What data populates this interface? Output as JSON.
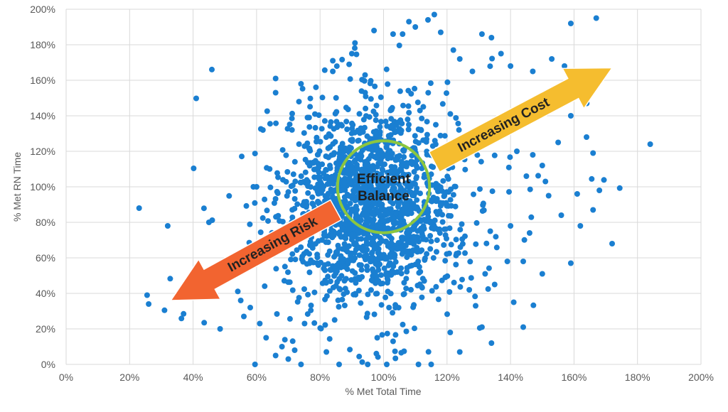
{
  "chart_data": {
    "type": "scatter",
    "xlabel": "% Met Total Time",
    "ylabel": "% Met RN Time",
    "xlim": [
      0,
      200
    ],
    "ylim": [
      0,
      200
    ],
    "x_ticks": [
      "0%",
      "20%",
      "40%",
      "60%",
      "80%",
      "100%",
      "120%",
      "140%",
      "160%",
      "180%",
      "200%"
    ],
    "y_ticks": [
      "0%",
      "20%",
      "40%",
      "60%",
      "80%",
      "100%",
      "120%",
      "140%",
      "160%",
      "180%",
      "200%"
    ],
    "grid": true,
    "point_color": "#1a7fd1",
    "annotations": {
      "center": {
        "lines": [
          "Efficient",
          "Balance"
        ],
        "x": 100,
        "y": 100,
        "radius_x_units": 14.5,
        "ring_color": "#8cc63f"
      },
      "risk_arrow": {
        "label": "Increasing Risk",
        "from": [
          85,
          87
        ],
        "to": [
          33,
          36
        ],
        "color": "#f26430"
      },
      "cost_arrow": {
        "label": "Increasing Cost",
        "from": [
          116,
          114
        ],
        "to": [
          172,
          167
        ],
        "color": "#f5bd2f"
      }
    },
    "outliers": [
      [
        23,
        88
      ],
      [
        25.5,
        39
      ],
      [
        26,
        34
      ],
      [
        31,
        30.5
      ],
      [
        32,
        78
      ],
      [
        37,
        28.5
      ],
      [
        45,
        80
      ],
      [
        43.5,
        23.5
      ],
      [
        48.5,
        20
      ],
      [
        59,
        100
      ],
      [
        60,
        100
      ],
      [
        59.5,
        0
      ],
      [
        56,
        27
      ],
      [
        55,
        36
      ],
      [
        58,
        32
      ],
      [
        62,
        132
      ],
      [
        66,
        161
      ],
      [
        66,
        153
      ],
      [
        74,
        158
      ],
      [
        84,
        171
      ],
      [
        74,
        0
      ],
      [
        70,
        3
      ],
      [
        66,
        5
      ],
      [
        63,
        15
      ],
      [
        61,
        23
      ],
      [
        68,
        10
      ],
      [
        72,
        8
      ],
      [
        103,
        186
      ],
      [
        106,
        186
      ],
      [
        108,
        193
      ],
      [
        110,
        190
      ],
      [
        114,
        194
      ],
      [
        116,
        197
      ],
      [
        118,
        187
      ],
      [
        122,
        177
      ],
      [
        124,
        172
      ],
      [
        128,
        165
      ],
      [
        131,
        186
      ],
      [
        134,
        184
      ],
      [
        137,
        175
      ],
      [
        140,
        168
      ],
      [
        147,
        165
      ],
      [
        153,
        172
      ],
      [
        157,
        168
      ],
      [
        159,
        192
      ],
      [
        167,
        195
      ],
      [
        162,
        164
      ],
      [
        166,
        158
      ],
      [
        164,
        147
      ],
      [
        159,
        140
      ],
      [
        155,
        125
      ],
      [
        166,
        119
      ],
      [
        184,
        124
      ],
      [
        168,
        98
      ],
      [
        161,
        96
      ],
      [
        166,
        87
      ],
      [
        162,
        78
      ],
      [
        156,
        84
      ],
      [
        152,
        95
      ],
      [
        151,
        103
      ],
      [
        150,
        112
      ],
      [
        147,
        118
      ],
      [
        145,
        106
      ],
      [
        142,
        120
      ],
      [
        146,
        74
      ],
      [
        150,
        51
      ],
      [
        159,
        57
      ],
      [
        172,
        68
      ],
      [
        144,
        58
      ],
      [
        141,
        35
      ],
      [
        144,
        21
      ],
      [
        131,
        21
      ],
      [
        134,
        12
      ],
      [
        132,
        51
      ],
      [
        129,
        33
      ],
      [
        124,
        7
      ],
      [
        111,
        0
      ],
      [
        115,
        0
      ],
      [
        101,
        0
      ],
      [
        95,
        0
      ],
      [
        86,
        0
      ],
      [
        82,
        7
      ],
      [
        98,
        15
      ],
      [
        103,
        13
      ],
      [
        121,
        18
      ],
      [
        127,
        42
      ],
      [
        139,
        58
      ],
      [
        140,
        78
      ],
      [
        135,
        45
      ],
      [
        91,
        181
      ],
      [
        97,
        188
      ],
      [
        90,
        175
      ],
      [
        84,
        165
      ]
    ]
  }
}
